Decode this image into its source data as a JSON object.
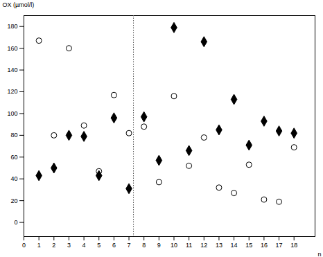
{
  "chart_data": {
    "type": "scatter",
    "y_label": "OX (µmol/l)",
    "x_label": "n",
    "x": [
      1,
      2,
      3,
      4,
      5,
      6,
      7,
      8,
      9,
      10,
      11,
      12,
      13,
      14,
      15,
      16,
      17,
      18
    ],
    "series": [
      {
        "marker": "circle",
        "color": "#000000",
        "values": [
          167,
          80,
          160,
          89,
          47,
          117,
          82,
          88,
          37,
          116,
          52,
          78,
          32,
          27,
          53,
          21,
          19,
          69
        ]
      },
      {
        "marker": "diamond",
        "color": "#000000",
        "values": [
          43,
          50,
          80,
          79,
          43,
          96,
          31,
          97,
          57,
          179,
          66,
          166,
          85,
          113,
          71,
          93,
          84,
          82
        ]
      }
    ],
    "vline": 7.3,
    "xlim": [
      0,
      19.4
    ],
    "xticks": [
      0,
      1,
      2,
      3,
      4,
      5,
      6,
      7,
      8,
      9,
      10,
      11,
      12,
      13,
      14,
      15,
      16,
      17,
      18
    ],
    "ylim": [
      -13,
      190
    ],
    "yticks": [
      0,
      20,
      40,
      60,
      80,
      100,
      120,
      140,
      160,
      180
    ],
    "grid": false
  }
}
